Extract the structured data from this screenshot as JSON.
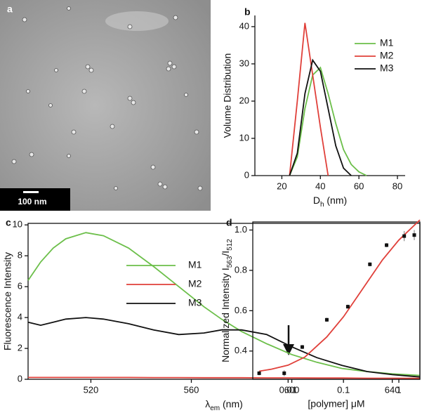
{
  "image": {
    "panel_label": "a",
    "scale_bar": "100 nm"
  },
  "chart_data": [
    {
      "type": "line",
      "panel_label": "b",
      "ylabel": "Volume Distribution",
      "xlabel": [
        "D",
        "h",
        " (nm)"
      ],
      "x": [
        24,
        28,
        32,
        36,
        40,
        44,
        48,
        52,
        56,
        60,
        64
      ],
      "series": [
        {
          "name": "M1",
          "color": "#6cbf4a",
          "values": [
            0,
            5,
            18,
            27,
            29,
            22,
            14,
            7,
            3,
            1,
            0
          ]
        },
        {
          "name": "M2",
          "color": "#e0403a",
          "values": [
            0,
            20,
            41,
            27,
            13,
            0,
            null,
            null,
            null,
            null,
            null
          ]
        },
        {
          "name": "M3",
          "color": "#111111",
          "values": [
            0,
            6,
            22,
            31,
            28,
            18,
            8,
            2,
            0,
            null,
            null
          ]
        }
      ],
      "xlim": [
        6,
        84
      ],
      "ylim": [
        0,
        43
      ],
      "xticks": [
        20,
        40,
        60,
        80
      ],
      "yticks": [
        0,
        10,
        20,
        30,
        40
      ],
      "legend": "upper right",
      "frame": "axes"
    },
    {
      "type": "line",
      "panel_label": "c",
      "ylabel": "Fluorescence Intensity",
      "xlabel": [
        "λ",
        "em",
        " (nm)"
      ],
      "x": [
        495,
        500,
        505,
        510,
        518,
        525,
        535,
        545,
        555,
        565,
        572,
        580,
        590,
        600,
        610,
        620,
        630,
        640,
        651
      ],
      "series": [
        {
          "name": "M1",
          "color": "#6cbf4a",
          "values": [
            6.4,
            7.6,
            8.5,
            9.1,
            9.5,
            9.3,
            8.5,
            7.3,
            6.0,
            4.7,
            3.9,
            3.1,
            2.3,
            1.6,
            1.1,
            0.7,
            0.5,
            0.35,
            0.25
          ]
        },
        {
          "name": "M2",
          "color": "#e0403a",
          "values": [
            0.12,
            0.12,
            0.12,
            0.12,
            0.12,
            0.12,
            0.12,
            0.11,
            0.11,
            0.1,
            0.1,
            0.1,
            0.09,
            0.09,
            0.08,
            0.08,
            0.07,
            0.07,
            0.06
          ]
        },
        {
          "name": "M3",
          "color": "#111111",
          "values": [
            3.7,
            3.5,
            3.7,
            3.9,
            4.0,
            3.9,
            3.6,
            3.2,
            2.9,
            3.0,
            3.2,
            3.2,
            2.9,
            2.1,
            1.4,
            0.9,
            0.5,
            0.3,
            0.15
          ]
        }
      ],
      "xlim": [
        495,
        651
      ],
      "ylim": [
        0,
        10.1
      ],
      "xticks": [
        520,
        560,
        600,
        640
      ],
      "yticks": [
        0,
        2,
        4,
        6,
        8,
        10
      ],
      "legend": "center",
      "frame": "box"
    },
    {
      "type": "scatter",
      "panel_label": "d",
      "ylabel": [
        "Normalized Intensity  I",
        "563",
        "/I",
        "512"
      ],
      "xlabel": "[polymer]  μM",
      "points": {
        "color": "#111111",
        "x": [
          0.003,
          0.0085,
          0.018,
          0.05,
          0.12,
          0.3,
          0.6,
          1.25,
          1.9
        ],
        "values": [
          0.29,
          0.29,
          0.42,
          0.555,
          0.62,
          0.83,
          0.925,
          0.97,
          0.975
        ],
        "errors": [
          0.01,
          0.015,
          0.01,
          0.01,
          0.01,
          0.01,
          0.01,
          0.025,
          0.025
        ]
      },
      "fit": {
        "color": "#e0403a",
        "x": [
          0.003,
          0.005,
          0.01,
          0.02,
          0.05,
          0.1,
          0.2,
          0.5,
          1,
          2.4
        ],
        "values": [
          0.3,
          0.31,
          0.33,
          0.37,
          0.47,
          0.57,
          0.69,
          0.85,
          0.95,
          1.05
        ]
      },
      "xlim": [
        0.0023,
        2.4
      ],
      "ylim": [
        0.26,
        1.04
      ],
      "xscale": "log",
      "xticks": [
        0.01,
        0.1,
        1
      ],
      "yticks": [
        0.4,
        0.6,
        0.8,
        {
          "value": 1,
          "label": "1.0"
        }
      ],
      "frame": "box"
    }
  ]
}
